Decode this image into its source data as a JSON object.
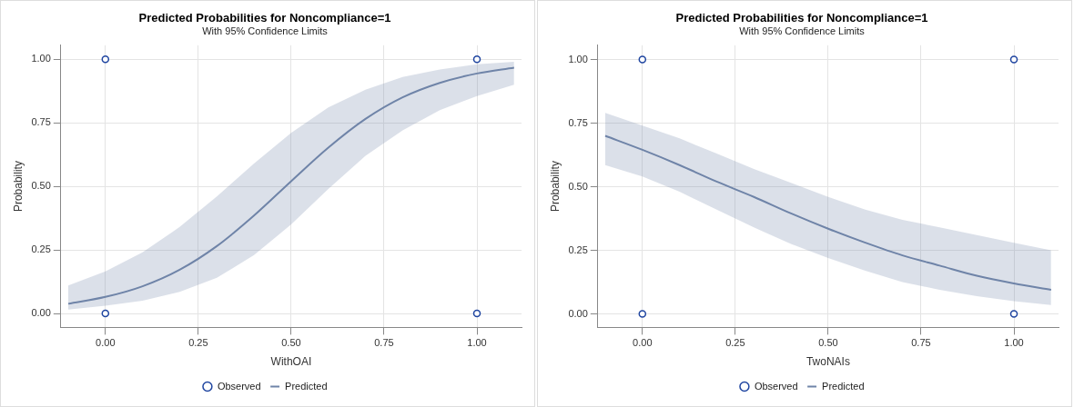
{
  "chart_data": [
    {
      "type": "line",
      "title": "Predicted Probabilities for Noncompliance=1",
      "subtitle": "With 95% Confidence Limits",
      "xlabel": "WithOAI",
      "ylabel": "Probability",
      "xlim": [
        -0.12,
        1.12
      ],
      "ylim": [
        -0.055,
        1.055
      ],
      "xticks": [
        {
          "value": 0,
          "label": "0.00"
        },
        {
          "value": 0.25,
          "label": "0.25"
        },
        {
          "value": 0.5,
          "label": "0.50"
        },
        {
          "value": 0.75,
          "label": "0.75"
        },
        {
          "value": 1,
          "label": "1.00"
        }
      ],
      "yticks": [
        {
          "value": 0,
          "label": "0.00"
        },
        {
          "value": 0.25,
          "label": "0.25"
        },
        {
          "value": 0.5,
          "label": "0.50"
        },
        {
          "value": 0.75,
          "label": "0.75"
        },
        {
          "value": 1,
          "label": "1.00"
        }
      ],
      "grid": true,
      "legend": "bottom",
      "line_style": "solid",
      "series": [
        {
          "name": "Observed",
          "type": "scatter",
          "marker": "circle",
          "color": "#1f45a0",
          "x": [
            0,
            0,
            1,
            1
          ],
          "values": [
            1,
            0,
            1,
            0
          ]
        },
        {
          "name": "Predicted",
          "type": "line",
          "marker": "none",
          "color": "#6f84a8",
          "x": [
            -0.1,
            0,
            0.1,
            0.2,
            0.3,
            0.4,
            0.5,
            0.6,
            0.7,
            0.8,
            0.9,
            1.0,
            1.1
          ],
          "values": [
            0.038,
            0.065,
            0.107,
            0.172,
            0.265,
            0.385,
            0.52,
            0.652,
            0.765,
            0.85,
            0.907,
            0.944,
            0.967
          ],
          "lower": [
            0.015,
            0.03,
            0.05,
            0.085,
            0.14,
            0.23,
            0.35,
            0.49,
            0.62,
            0.72,
            0.8,
            0.855,
            0.9
          ],
          "upper": [
            0.11,
            0.165,
            0.24,
            0.34,
            0.46,
            0.59,
            0.71,
            0.81,
            0.88,
            0.93,
            0.96,
            0.98,
            0.99
          ]
        }
      ]
    },
    {
      "type": "line",
      "title": "Predicted Probabilities for Noncompliance=1",
      "subtitle": "With 95% Confidence Limits",
      "xlabel": "TwoNAIs",
      "ylabel": "Probability",
      "xlim": [
        -0.12,
        1.12
      ],
      "ylim": [
        -0.053,
        1.056
      ],
      "xticks": [
        {
          "value": 0,
          "label": "0.00"
        },
        {
          "value": 0.25,
          "label": "0.25"
        },
        {
          "value": 0.5,
          "label": "0.50"
        },
        {
          "value": 0.75,
          "label": "0.75"
        },
        {
          "value": 1,
          "label": "1.00"
        }
      ],
      "yticks": [
        {
          "value": 0,
          "label": "0.00"
        },
        {
          "value": 0.25,
          "label": "0.25"
        },
        {
          "value": 0.5,
          "label": "0.50"
        },
        {
          "value": 0.75,
          "label": "0.75"
        },
        {
          "value": 1,
          "label": "1.00"
        }
      ],
      "grid": true,
      "legend": "bottom",
      "line_style": "solid",
      "series": [
        {
          "name": "Observed",
          "type": "scatter",
          "marker": "circle",
          "color": "#1f45a0",
          "x": [
            0,
            0,
            1,
            1
          ],
          "values": [
            1,
            0,
            1,
            0
          ]
        },
        {
          "name": "Predicted",
          "type": "line",
          "marker": "none",
          "color": "#6f84a8",
          "x": [
            -0.1,
            0,
            0.1,
            0.2,
            0.3,
            0.4,
            0.5,
            0.6,
            0.7,
            0.8,
            0.9,
            1.0,
            1.1
          ],
          "values": [
            0.7,
            0.645,
            0.585,
            0.52,
            0.46,
            0.395,
            0.335,
            0.28,
            0.23,
            0.19,
            0.15,
            0.12,
            0.095
          ],
          "lower": [
            0.585,
            0.54,
            0.48,
            0.41,
            0.34,
            0.275,
            0.22,
            0.17,
            0.125,
            0.095,
            0.07,
            0.05,
            0.035
          ],
          "upper": [
            0.79,
            0.74,
            0.69,
            0.63,
            0.57,
            0.515,
            0.46,
            0.41,
            0.37,
            0.34,
            0.31,
            0.28,
            0.25
          ]
        }
      ]
    }
  ]
}
